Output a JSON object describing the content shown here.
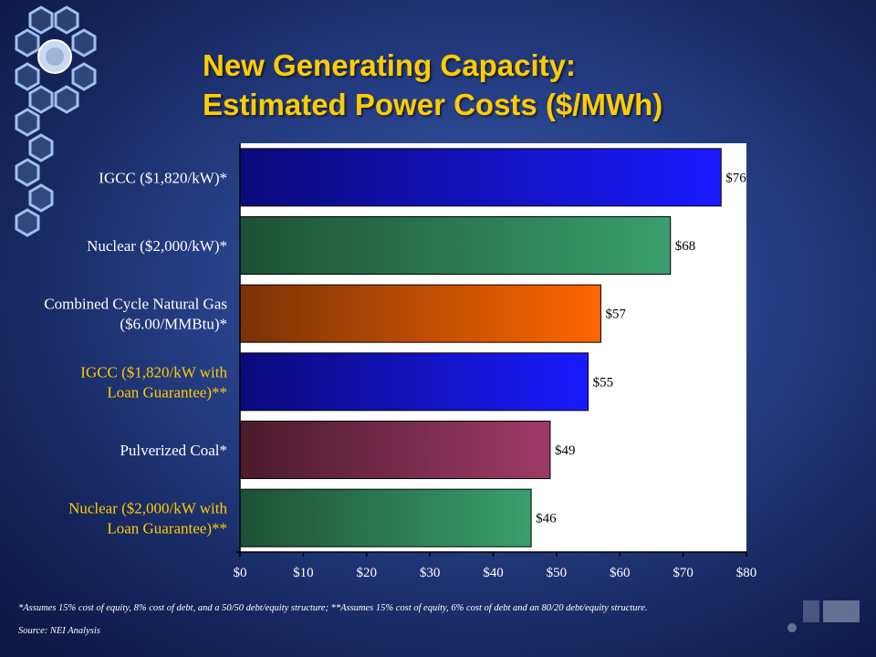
{
  "title_line1": "New Generating Capacity:",
  "title_line2": "Estimated Power Costs ($/MWh)",
  "chart_data": {
    "type": "bar",
    "orientation": "horizontal",
    "categories": [
      [
        "IGCC ($1,820/kW)*"
      ],
      [
        "Nuclear ($2,000/kW)*"
      ],
      [
        "Combined Cycle Natural Gas",
        "($6.00/MMBtu)*"
      ],
      [
        "IGCC ($1,820/kW with",
        "Loan Guarantee)**"
      ],
      [
        "Pulverized Coal*"
      ],
      [
        "Nuclear ($2,000/kW with",
        "Loan Guarantee)**"
      ]
    ],
    "values": [
      76,
      68,
      57,
      55,
      49,
      46
    ],
    "value_labels": [
      "$76",
      "$68",
      "$57",
      "$55",
      "$49",
      "$46"
    ],
    "xlim": [
      0,
      80
    ],
    "xticks": [
      0,
      10,
      20,
      30,
      40,
      50,
      60,
      70,
      80
    ],
    "xtick_labels": [
      "$0",
      "$10",
      "$20",
      "$30",
      "$40",
      "$50",
      "$60",
      "$70",
      "$80"
    ],
    "bar_colors": [
      [
        "#0a0a7a",
        "#1a1aff"
      ],
      [
        "#1d5035",
        "#3a9f6e"
      ],
      [
        "#7a3206",
        "#ff6600"
      ],
      [
        "#0a0a7a",
        "#1a1aff"
      ],
      [
        "#4a1a2c",
        "#9e3a66"
      ],
      [
        "#1d5035",
        "#3a9f6e"
      ]
    ],
    "category_label_colors": [
      "#ffffff",
      "#ffffff",
      "#ffffff",
      "#ffcc00",
      "#ffffff",
      "#ffcc00"
    ],
    "grid": false
  },
  "footnote": "*Assumes 15% cost of equity, 8% cost of debt, and a 50/50 debt/equity structure;  **Assumes 15% cost of equity, 6% cost of debt and an 80/20 debt/equity structure.",
  "source": "Source: NEI Analysis",
  "colors": {
    "title": "#ffcc00",
    "label_highlight": "#ffcc00",
    "plot_background": "#ffffff"
  }
}
